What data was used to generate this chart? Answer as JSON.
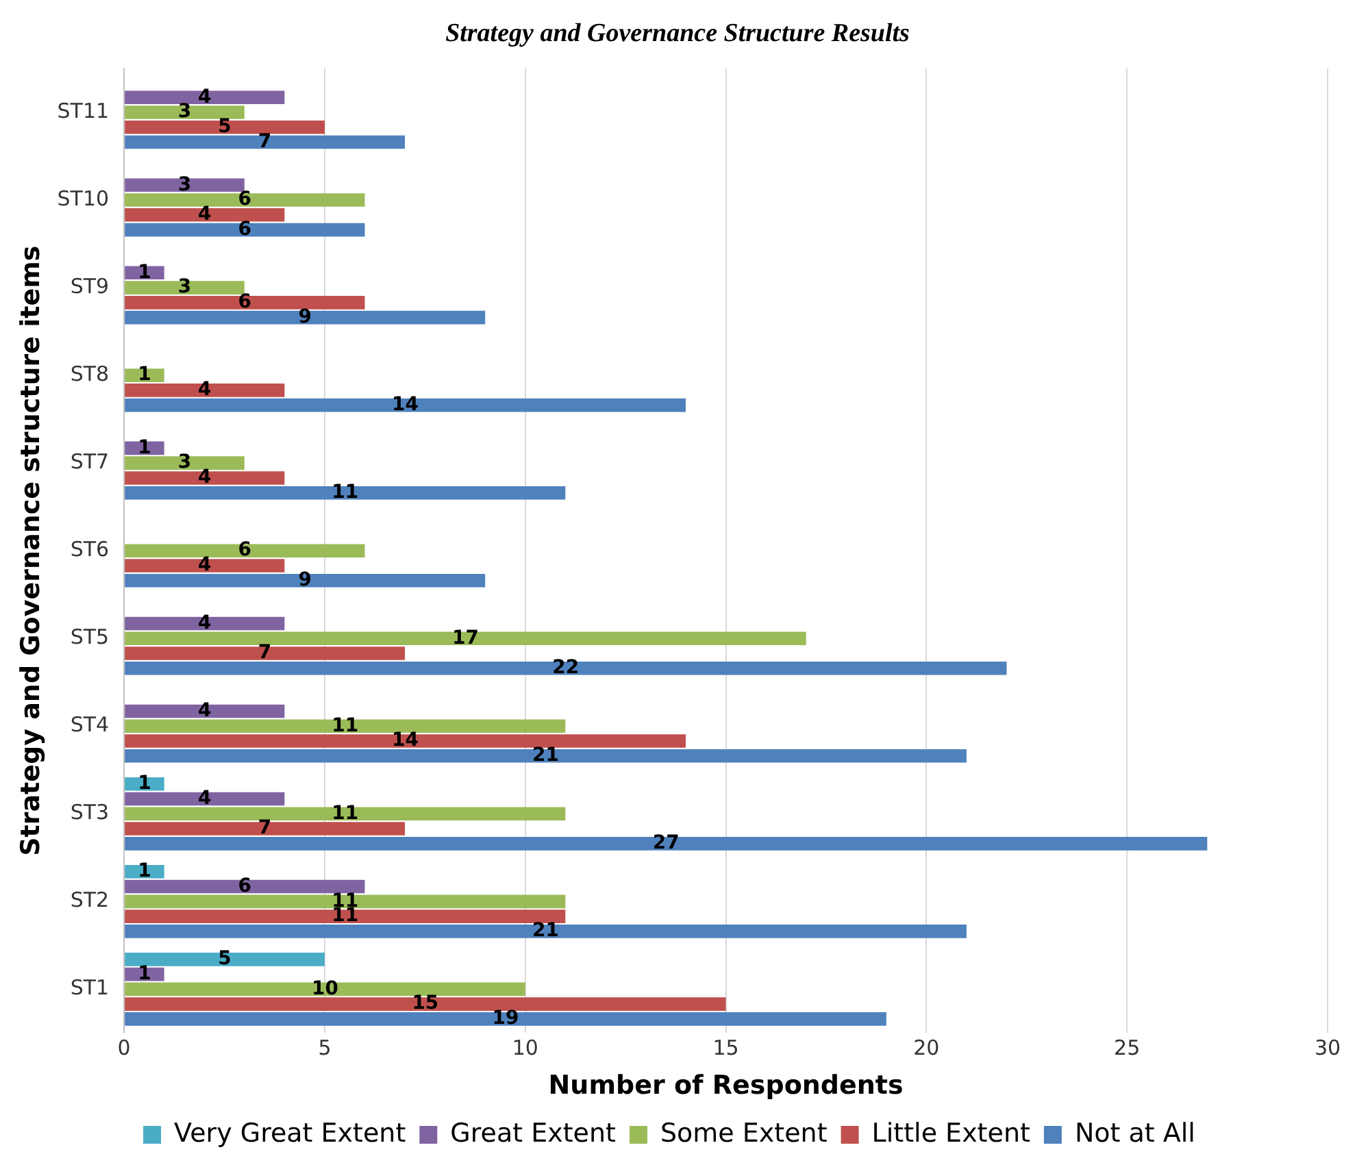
{
  "chart_data": {
    "type": "bar",
    "orientation": "horizontal",
    "title": "Strategy and Governance Structure Results",
    "xlabel": "Number of Respondents",
    "ylabel": "Strategy and Governance structure items",
    "categories": [
      "ST11",
      "ST10",
      "ST9",
      "ST8",
      "ST7",
      "ST6",
      "ST5",
      "ST4",
      "ST3",
      "ST2",
      "ST1"
    ],
    "series": [
      {
        "name": "Very Great Extent",
        "color": "#4bacc6",
        "values": [
          null,
          null,
          null,
          null,
          null,
          null,
          null,
          null,
          1,
          1,
          5
        ]
      },
      {
        "name": "Great Extent",
        "color": "#8064a2",
        "values": [
          4,
          3,
          1,
          null,
          1,
          null,
          4,
          4,
          4,
          6,
          1
        ]
      },
      {
        "name": "Some Extent",
        "color": "#9bbb59",
        "values": [
          3,
          6,
          3,
          1,
          3,
          6,
          17,
          11,
          11,
          11,
          10
        ]
      },
      {
        "name": "Little Extent",
        "color": "#c0504d",
        "values": [
          5,
          4,
          6,
          4,
          4,
          4,
          7,
          14,
          7,
          11,
          15
        ]
      },
      {
        "name": "Not at All",
        "color": "#4f81bd",
        "values": [
          7,
          6,
          9,
          14,
          11,
          9,
          22,
          21,
          27,
          21,
          19
        ]
      }
    ],
    "xlim": [
      0,
      30
    ],
    "xticks": [
      0,
      5,
      10,
      15,
      20,
      25,
      30
    ],
    "grid": "x",
    "legend": "bottom",
    "data_labels": true
  }
}
